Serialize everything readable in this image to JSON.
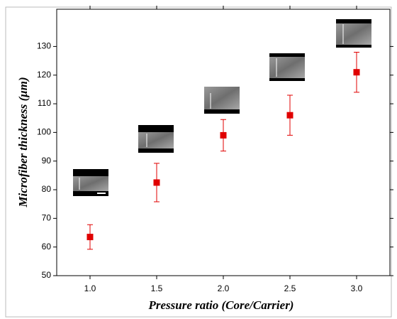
{
  "chart_data": {
    "type": "scatter",
    "xlabel": "Pressure ratio (Core/Carrier)",
    "ylabel": "Microfiber thickness (μm)",
    "x": [
      1.0,
      1.5,
      2.0,
      2.5,
      3.0
    ],
    "values": [
      63.5,
      82.5,
      99,
      106,
      121
    ],
    "errors": [
      4.3,
      6.7,
      5.5,
      7,
      7
    ],
    "color": "#e00000",
    "xlim": [
      0.75,
      3.25
    ],
    "xticks": [
      {
        "value": 1,
        "label": "1.0"
      },
      1.5,
      {
        "value": 2,
        "label": "2.0"
      },
      2.5,
      {
        "value": 3,
        "label": "3.0"
      }
    ],
    "ylim": [
      50,
      143
    ],
    "yticks": [
      50,
      60,
      70,
      80,
      90,
      100,
      110,
      120,
      130
    ]
  }
}
